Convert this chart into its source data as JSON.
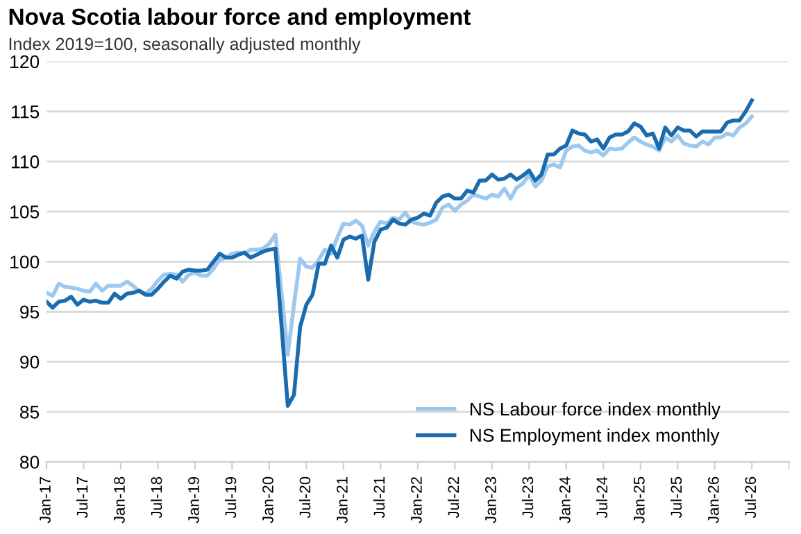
{
  "chart_data": {
    "type": "line",
    "title": "Nova Scotia labour force and employment",
    "subtitle": "Index 2019=100, seasonally adjusted monthly",
    "categories": [
      "Jan-17",
      null,
      null,
      null,
      null,
      null,
      "Jul-17",
      null,
      null,
      null,
      null,
      null,
      "Jan-18",
      null,
      null,
      null,
      null,
      null,
      "Jul-18",
      null,
      null,
      null,
      null,
      null,
      "Jan-19",
      null,
      null,
      null,
      null,
      null,
      "Jul-19",
      null,
      null,
      null,
      null,
      null,
      "Jan-20",
      null,
      null,
      null,
      null,
      null,
      "Jul-20",
      null,
      null,
      null,
      null,
      null,
      "Jan-21",
      null,
      null,
      null,
      null,
      null,
      "Jul-21",
      null,
      null,
      null,
      null,
      null,
      "Jan-22",
      null,
      null,
      null,
      null,
      null,
      "Jul-22",
      null,
      null,
      null,
      null,
      null,
      "Jan-23",
      null,
      null,
      null,
      null,
      null,
      "Jul-23",
      null,
      null,
      null,
      null,
      null,
      "Jan-24",
      null,
      null,
      null,
      null,
      null,
      "Jul-24",
      null,
      null,
      null,
      null,
      null,
      "Jan-25",
      null,
      null,
      null,
      null,
      null,
      "Jul-25",
      null,
      null,
      null,
      null,
      null,
      "Jan-26",
      null,
      null,
      null,
      null,
      null,
      "Jul-26",
      null,
      null,
      null,
      null,
      null,
      null
    ],
    "series": [
      {
        "name": "NS Labour force index monthly",
        "color": "#9dc8ef",
        "values": [
          96.9,
          96.6,
          97.8,
          97.5,
          97.4,
          97.3,
          97.1,
          97.0,
          97.8,
          97.1,
          97.6,
          97.6,
          97.6,
          98.0,
          97.6,
          97.0,
          96.8,
          97.3,
          98.1,
          98.7,
          98.8,
          98.7,
          98.0,
          98.7,
          98.9,
          98.6,
          98.6,
          99.3,
          100.2,
          100.4,
          100.8,
          100.9,
          100.8,
          101.2,
          101.2,
          101.3,
          101.8,
          102.7,
          96.9,
          90.7,
          95.7,
          100.3,
          99.5,
          99.4,
          100.2,
          101.2,
          100.8,
          102.4,
          103.8,
          103.7,
          104.1,
          103.6,
          101.6,
          103.0,
          104.0,
          103.8,
          104.4,
          104.2,
          104.9,
          104.0,
          103.8,
          103.7,
          103.9,
          104.2,
          105.4,
          105.7,
          105.1,
          105.7,
          106.1,
          106.7,
          106.5,
          106.3,
          106.7,
          106.5,
          107.3,
          106.3,
          107.4,
          107.8,
          108.7,
          107.5,
          108.1,
          109.5,
          109.7,
          109.4,
          111.1,
          111.5,
          111.6,
          111.1,
          110.9,
          111.1,
          110.6,
          111.3,
          111.2,
          111.3,
          111.9,
          112.4,
          112.0,
          111.7,
          111.5,
          111.1,
          112.4,
          112.0,
          112.6,
          111.8,
          111.6,
          111.5,
          112.0,
          111.7,
          112.4,
          112.4,
          112.8,
          112.6,
          113.4,
          113.8,
          114.5,
          null,
          null,
          null,
          null,
          null,
          null
        ]
      },
      {
        "name": "NS Employment index monthly",
        "color": "#1b6cae",
        "values": [
          96.0,
          95.4,
          96.0,
          96.1,
          96.5,
          95.7,
          96.2,
          96.0,
          96.1,
          95.9,
          95.9,
          96.8,
          96.3,
          96.8,
          96.9,
          97.1,
          96.7,
          96.7,
          97.3,
          98.0,
          98.6,
          98.3,
          99.0,
          99.2,
          99.1,
          99.1,
          99.2,
          100.0,
          100.8,
          100.4,
          100.4,
          100.7,
          100.9,
          100.4,
          100.7,
          101.0,
          101.2,
          101.3,
          93.5,
          85.6,
          86.7,
          93.5,
          95.7,
          96.7,
          99.8,
          99.8,
          101.6,
          100.4,
          102.2,
          102.5,
          102.3,
          102.6,
          98.2,
          102.0,
          103.2,
          103.4,
          104.2,
          103.8,
          103.7,
          104.2,
          104.4,
          104.8,
          104.6,
          105.9,
          106.5,
          106.7,
          106.3,
          106.3,
          107.1,
          106.9,
          108.1,
          108.1,
          108.7,
          108.2,
          108.3,
          108.7,
          108.2,
          108.6,
          109.1,
          108.1,
          108.7,
          110.7,
          110.7,
          111.3,
          111.6,
          113.1,
          112.8,
          112.7,
          112.0,
          112.2,
          111.3,
          112.4,
          112.7,
          112.7,
          113.0,
          113.8,
          113.5,
          112.6,
          112.8,
          111.3,
          113.4,
          112.6,
          113.4,
          113.1,
          113.1,
          112.5,
          113.0,
          113.0,
          113.0,
          113.0,
          113.9,
          114.1,
          114.1,
          115.0,
          116.1,
          null,
          null,
          null,
          null,
          null,
          null
        ]
      }
    ],
    "ylim": [
      80,
      120
    ],
    "yticks": [
      80,
      85,
      90,
      95,
      100,
      105,
      110,
      115,
      120
    ],
    "grid": "y",
    "legend": "bottom right",
    "marker": "none",
    "line_style": "solid"
  }
}
